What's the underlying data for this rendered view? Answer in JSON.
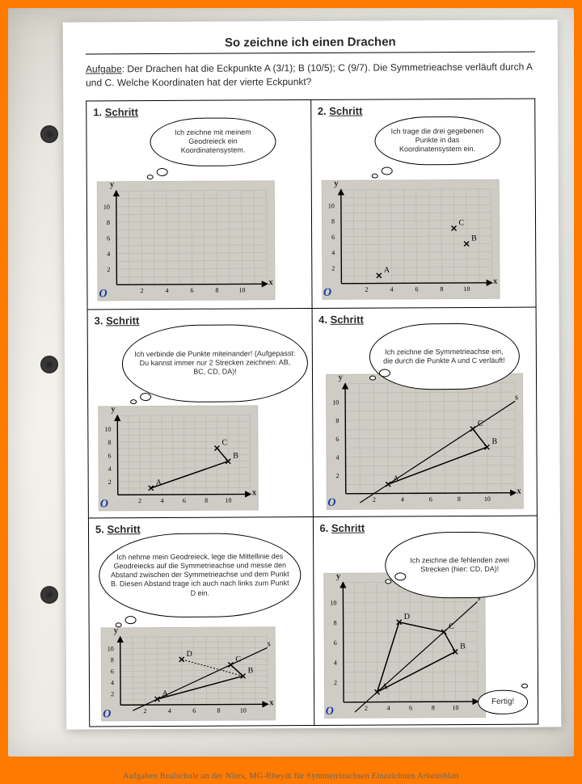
{
  "title": "So zeichne ich einen Drachen",
  "task_lead": "Aufgabe",
  "task_body": ": Der Drachen hat die Eckpunkte A (3/1); B (10/5); C (9/7). Die Symmetrieachse verläuft durch A und C. Welche Koordinaten hat der vierte Eckpunkt?",
  "step_word": "Schritt",
  "steps": [
    {
      "n": "1.",
      "bubble": "Ich zeichne mit meinem Geodreieck ein Koordinatensystem.",
      "bubble_size": "small",
      "graph": {
        "points": [],
        "segments": [],
        "sym": false
      }
    },
    {
      "n": "2.",
      "bubble": "Ich trage die drei gegebenen Punkte in das Koordinatensystem ein.",
      "bubble_size": "small",
      "graph": {
        "points": [
          {
            "x": 3,
            "y": 1,
            "l": "A"
          },
          {
            "x": 10,
            "y": 5,
            "l": "B"
          },
          {
            "x": 9,
            "y": 7,
            "l": "C"
          }
        ],
        "segments": [],
        "sym": false
      }
    },
    {
      "n": "3.",
      "bubble": "Ich verbinde die Punkte miteinander! (Aufgepasst: Du kannst immer nur 2 Strecken zeichnen: AB, BC, CD, DA)!",
      "bubble_size": "lg",
      "graph": {
        "points": [
          {
            "x": 3,
            "y": 1,
            "l": "A"
          },
          {
            "x": 10,
            "y": 5,
            "l": "B"
          },
          {
            "x": 9,
            "y": 7,
            "l": "C"
          }
        ],
        "segments": [
          [
            "A",
            "B"
          ],
          [
            "B",
            "C"
          ]
        ],
        "sym": false
      }
    },
    {
      "n": "4.",
      "bubble": "Ich zeichne die Symmetrieachse ein, die durch die Punkte A und C verläuft!",
      "bubble_size": "med",
      "graph": {
        "points": [
          {
            "x": 3,
            "y": 1,
            "l": "A"
          },
          {
            "x": 10,
            "y": 5,
            "l": "B"
          },
          {
            "x": 9,
            "y": 7,
            "l": "C"
          }
        ],
        "segments": [
          [
            "A",
            "B"
          ],
          [
            "B",
            "C"
          ]
        ],
        "sym": true
      }
    },
    {
      "n": "5.",
      "bubble": "Ich nehme mein Geodreieck, lege die Mittellinie des Geodreiecks auf die Symmetrieachse und messe den Abstand zwischen der Symmetrieachse und dem Punkt B. Diesen Abstand trage ich auch nach links zum Punkt D ein.",
      "bubble_size": "xl",
      "graph": {
        "points": [
          {
            "x": 3,
            "y": 1,
            "l": "A"
          },
          {
            "x": 10,
            "y": 5,
            "l": "B"
          },
          {
            "x": 9,
            "y": 7,
            "l": "C"
          },
          {
            "x": 5,
            "y": 8,
            "l": "D"
          }
        ],
        "segments": [
          [
            "A",
            "B"
          ],
          [
            "B",
            "C"
          ]
        ],
        "sym": true,
        "perp": true
      }
    },
    {
      "n": "6.",
      "bubble": "Ich zeichne die fehlenden zwei Strecken (hier: CD, DA)!",
      "bubble_size": "med",
      "done": "Fertig!",
      "graph": {
        "points": [
          {
            "x": 3,
            "y": 1,
            "l": "A"
          },
          {
            "x": 10,
            "y": 5,
            "l": "B"
          },
          {
            "x": 9,
            "y": 7,
            "l": "C"
          },
          {
            "x": 5,
            "y": 8,
            "l": "D"
          }
        ],
        "segments": [
          [
            "A",
            "B"
          ],
          [
            "B",
            "C"
          ],
          [
            "C",
            "D"
          ],
          [
            "D",
            "A"
          ]
        ],
        "sym": true
      }
    }
  ],
  "axis": {
    "y": "y",
    "x": "x",
    "origin": "O",
    "ticks": [
      2,
      4,
      6,
      8,
      10
    ]
  },
  "colors": {
    "grid": "#b9b5ad",
    "axis": "#000000",
    "seg": "#000000",
    "sym": "#000000"
  },
  "caption": "Aufgaben Realschule an der Niers, MG-Rheydt für Symmetrieachsen Einzeichnen Arbeitsblatt"
}
